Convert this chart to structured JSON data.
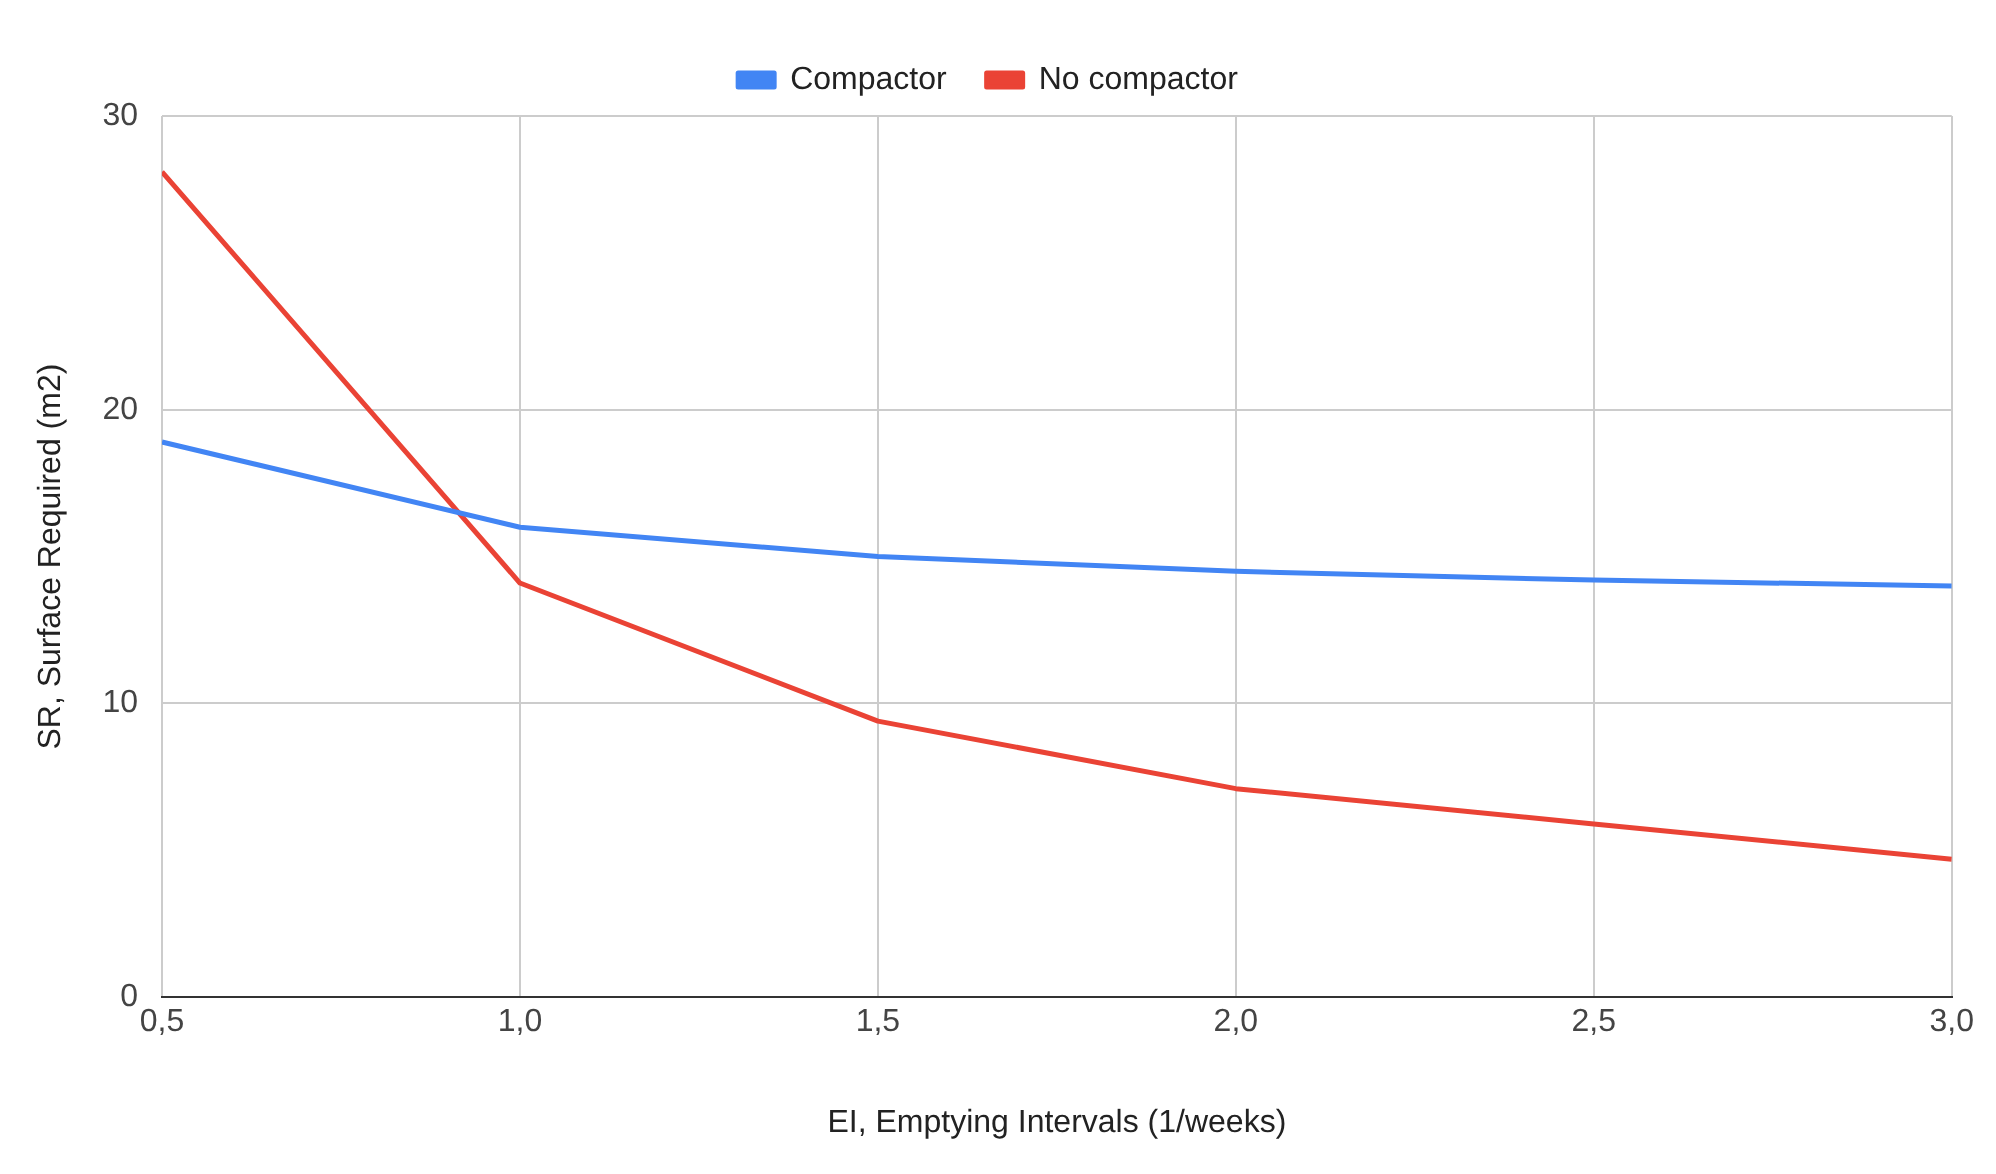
{
  "chart_data": {
    "type": "line",
    "xlabel": "EI, Emptying Intervals (1/weeks)",
    "ylabel": "SR, Surface Required (m2)",
    "x": [
      0.5,
      1.0,
      1.5,
      2.0,
      2.5,
      3.0
    ],
    "series": [
      {
        "name": "Compactor",
        "color": "#4285f4",
        "values": [
          18.9,
          16.0,
          15.0,
          14.5,
          14.2,
          14.0
        ]
      },
      {
        "name": "No compactor",
        "color": "#ea4335",
        "values": [
          28.1,
          14.1,
          9.4,
          7.1,
          5.9,
          4.7
        ]
      }
    ],
    "xlim": [
      0.5,
      3.0
    ],
    "xticks": [
      {
        "value": 0.5,
        "label": "0,5"
      },
      {
        "value": 1.0,
        "label": "1,0"
      },
      {
        "value": 1.5,
        "label": "1,5"
      },
      {
        "value": 2.0,
        "label": "2,0"
      },
      {
        "value": 2.5,
        "label": "2,5"
      },
      {
        "value": 3.0,
        "label": "3,0"
      }
    ],
    "ylim": [
      0,
      30
    ],
    "yticks": [
      0,
      10,
      20,
      30
    ],
    "grid": true,
    "legend": "top",
    "marker": "none",
    "line_style": "solid"
  }
}
